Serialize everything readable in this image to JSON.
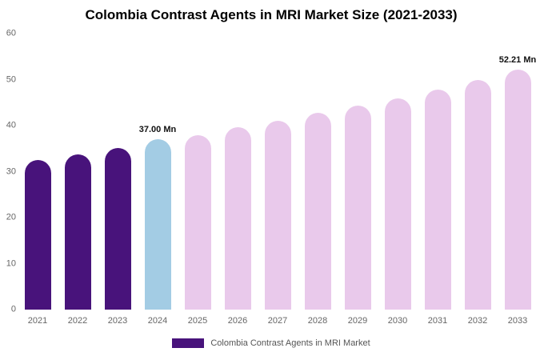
{
  "chart_data": {
    "type": "bar",
    "title": "Colombia Contrast Agents in MRI Market Size (2021-2033)",
    "categories": [
      "2021",
      "2022",
      "2023",
      "2024",
      "2025",
      "2026",
      "2027",
      "2028",
      "2029",
      "2030",
      "2031",
      "2032",
      "2033"
    ],
    "values": [
      32.5,
      33.8,
      35.2,
      37.0,
      38.0,
      39.6,
      41.1,
      42.7,
      44.3,
      46.0,
      47.9,
      49.9,
      52.21
    ],
    "bar_labels": {
      "2024": "37.00 Mn",
      "2033": "52.21 Mn"
    },
    "bar_color_keys": [
      "historical",
      "historical",
      "historical",
      "current",
      "forecast",
      "forecast",
      "forecast",
      "forecast",
      "forecast",
      "forecast",
      "forecast",
      "forecast",
      "forecast"
    ],
    "colors": {
      "historical": "#48137b",
      "current": "#a3cce4",
      "forecast": "#e9c9eb"
    },
    "ylim": [
      0,
      60
    ],
    "yticks": [
      0,
      10,
      20,
      30,
      40,
      50,
      60
    ],
    "grid": false,
    "legend_position": "bottom",
    "legend": [
      {
        "label": "Colombia Contrast Agents in MRI Market",
        "color": "#48137b"
      }
    ]
  }
}
